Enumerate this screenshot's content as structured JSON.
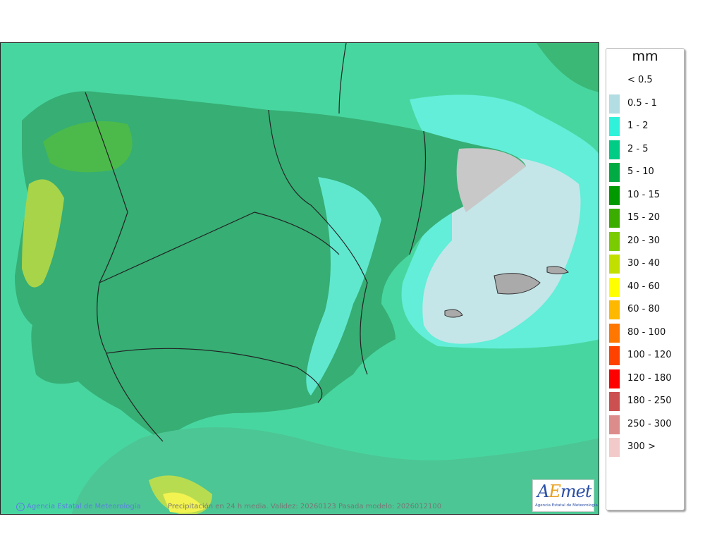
{
  "legend": {
    "unit": "mm",
    "items": [
      {
        "label": "< 0.5",
        "color": ""
      },
      {
        "label": "0.5 - 1",
        "color": "#b2dde2"
      },
      {
        "label": "1 - 2",
        "color": "#30f2da"
      },
      {
        "label": "2 - 5",
        "color": "#00cc86"
      },
      {
        "label": "5 - 10",
        "color": "#00ab44"
      },
      {
        "label": "10 - 15",
        "color": "#009a00"
      },
      {
        "label": "15 - 20",
        "color": "#3aad00"
      },
      {
        "label": "20 - 30",
        "color": "#7acb00"
      },
      {
        "label": "30 - 40",
        "color": "#c2e000"
      },
      {
        "label": "40 - 60",
        "color": "#ffff00"
      },
      {
        "label": "60 - 80",
        "color": "#ffb800"
      },
      {
        "label": "80 - 100",
        "color": "#ff7700"
      },
      {
        "label": "100 - 120",
        "color": "#ff4200"
      },
      {
        "label": "120 - 180",
        "color": "#ff0000"
      },
      {
        "label": "180 - 250",
        "color": "#cc5050"
      },
      {
        "label": "250 - 300",
        "color": "#dd8c8c"
      },
      {
        "label": "300 >",
        "color": "#f2caca"
      }
    ]
  },
  "map": {
    "credit": "Agencia Estatal de Meteorología",
    "caption": "Precipitación en 24 h media. Validez: 20260123 Pasada modelo: 2026012100",
    "logo_text": "AEmet",
    "logo_subtitle": "Agencia Estatal de Meteorología"
  }
}
